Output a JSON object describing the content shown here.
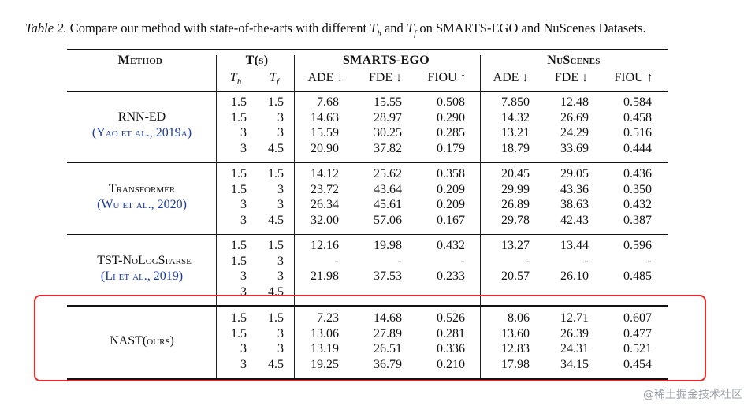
{
  "caption": {
    "label": "Table 2.",
    "text_a": "Compare our method with state-of-the-arts with different",
    "th_base": "T",
    "th_sub": "h",
    "and": "and",
    "tf_base": "T",
    "tf_sub": "f",
    "text_b": "on SMARTS-EGO and NuScenes Datasets."
  },
  "header": {
    "method": "Method",
    "t": "T(s)",
    "smarts": "SMARTS-EGO",
    "nuscenes": "NuScenes",
    "th": "T",
    "th_sub": "h",
    "tf": "T",
    "tf_sub": "f",
    "ade": "ADE ↓",
    "fde": "FDE ↓",
    "fiou": "FIOU ↑",
    "ade2": "ADE ↓",
    "fde2": "FDE ↓",
    "fiou2": "FIOU ↑"
  },
  "groups": [
    {
      "name": "RNN-ED",
      "cite": "(Yao et al., 2019a)",
      "th": [
        "1.5",
        "1.5",
        "3",
        "3"
      ],
      "tf": [
        "1.5",
        "3",
        "3",
        "4.5"
      ],
      "s_ade": [
        "7.68",
        "14.63",
        "15.59",
        "20.90"
      ],
      "s_fde": [
        "15.55",
        "28.97",
        "30.25",
        "37.82"
      ],
      "s_fiou": [
        "0.508",
        "0.290",
        "0.285",
        "0.179"
      ],
      "n_ade": [
        "7.850",
        "14.32",
        "13.21",
        "18.79"
      ],
      "n_fde": [
        "12.48",
        "26.69",
        "24.29",
        "33.69"
      ],
      "n_fiou": [
        "0.584",
        "0.458",
        "0.516",
        "0.444"
      ]
    },
    {
      "name": "Transformer",
      "cite": "(Wu et al., 2020)",
      "th": [
        "1.5",
        "1.5",
        "3",
        "3"
      ],
      "tf": [
        "1.5",
        "3",
        "3",
        "4.5"
      ],
      "s_ade": [
        "14.12",
        "23.72",
        "26.34",
        "32.00"
      ],
      "s_fde": [
        "25.62",
        "43.64",
        "45.61",
        "57.06"
      ],
      "s_fiou": [
        "0.358",
        "0.209",
        "0.209",
        "0.167"
      ],
      "n_ade": [
        "20.45",
        "29.99",
        "26.89",
        "29.78"
      ],
      "n_fde": [
        "29.05",
        "43.36",
        "38.63",
        "42.43"
      ],
      "n_fiou": [
        "0.436",
        "0.350",
        "0.432",
        "0.387"
      ]
    },
    {
      "name": "TST-NoLogSparse",
      "cite": "(Li et al., 2019)",
      "th": [
        "1.5",
        "1.5",
        "3",
        "3"
      ],
      "tf": [
        "1.5",
        "3",
        "3",
        "4.5"
      ],
      "s_ade": [
        "12.16",
        "-",
        "21.98",
        ""
      ],
      "s_fde": [
        "19.98",
        "-",
        "37.53",
        ""
      ],
      "s_fiou": [
        "0.432",
        "-",
        "0.233",
        ""
      ],
      "n_ade": [
        "13.27",
        "-",
        "20.57",
        ""
      ],
      "n_fde": [
        "13.44",
        "-",
        "26.10",
        ""
      ],
      "n_fiou": [
        "0.596",
        "-",
        "0.485",
        ""
      ]
    },
    {
      "name": "NAST(ours)",
      "cite": "",
      "th": [
        "1.5",
        "1.5",
        "3",
        "3"
      ],
      "tf": [
        "1.5",
        "3",
        "3",
        "4.5"
      ],
      "s_ade": [
        "7.23",
        "13.06",
        "13.19",
        "19.25"
      ],
      "s_fde": [
        "14.68",
        "27.89",
        "26.51",
        "36.79"
      ],
      "s_fiou": [
        "0.526",
        "0.281",
        "0.336",
        "0.210"
      ],
      "n_ade": [
        "8.06",
        "13.60",
        "12.83",
        "17.98"
      ],
      "n_fde": [
        "12.71",
        "26.39",
        "24.31",
        "34.15"
      ],
      "n_fiou": [
        "0.607",
        "0.477",
        "0.521",
        "0.454"
      ]
    }
  ],
  "watermark": "@稀土掘金技术社区",
  "highlight_color": "#e82a2a"
}
